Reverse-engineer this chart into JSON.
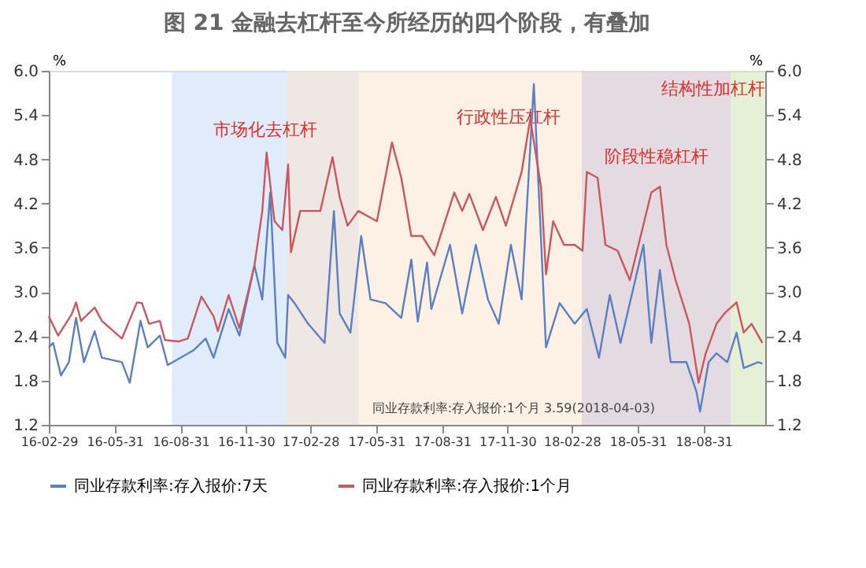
{
  "chart_data": {
    "type": "line",
    "title": "图 21 金融去杠杆至今所经历的四个阶段，有叠加",
    "ylabel": "%",
    "y2label": "%",
    "xlim": [
      "2016-02-29",
      "2018-11-25"
    ],
    "xticks": [
      {
        "value": "2016-02-29",
        "label": "16-02-29"
      },
      {
        "value": "2016-05-31",
        "label": "16-05-31"
      },
      {
        "value": "2016-08-31",
        "label": "16-08-31"
      },
      {
        "value": "2016-11-30",
        "label": "16-11-30"
      },
      {
        "value": "2017-02-28",
        "label": "17-02-28"
      },
      {
        "value": "2017-05-31",
        "label": "17-05-31"
      },
      {
        "value": "2017-08-31",
        "label": "17-08-31"
      },
      {
        "value": "2017-11-30",
        "label": "17-11-30"
      },
      {
        "value": "2018-02-28",
        "label": "18-02-28"
      },
      {
        "value": "2018-05-31",
        "label": "18-05-31"
      },
      {
        "value": "2018-08-31",
        "label": "18-08-31"
      }
    ],
    "ylim": [
      1.2,
      6.0
    ],
    "yticks": [
      1.2,
      1.8,
      2.4,
      {
        "value": 3,
        "label": "3.0"
      },
      3.6,
      4.2,
      4.8,
      5.4,
      {
        "value": 6,
        "label": "6.0"
      }
    ],
    "y2lim": [
      1.2,
      6.0
    ],
    "y2ticks": [
      1.2,
      1.8,
      2.4,
      {
        "value": 3,
        "label": "3.0"
      },
      3.6,
      4.2,
      4.8,
      5.4,
      {
        "value": 6,
        "label": "6.0"
      }
    ],
    "grid": false,
    "legend": "bottom",
    "marker": "none",
    "line_style": "solid",
    "series": [
      {
        "name": "同业存款利率:存入报价:7天",
        "color": "#5b7fbf",
        "x": [
          "2016-02-29",
          "2016-03-06",
          "2016-03-17",
          "2016-03-28",
          "2016-04-03",
          "2016-04-07",
          "2016-04-18",
          "2016-05-03",
          "2016-05-13",
          "2016-06-10",
          "2016-06-21",
          "2016-07-06",
          "2016-07-16",
          "2016-08-02",
          "2016-08-13",
          "2016-09-18",
          "2016-10-05",
          "2016-10-16",
          "2016-11-06",
          "2016-11-21",
          "2016-12-12",
          "2016-12-23",
          "2017-01-03",
          "2017-01-13",
          "2017-01-24",
          "2017-01-28",
          "2017-02-06",
          "2017-02-25",
          "2017-03-20",
          "2017-04-02",
          "2017-04-10",
          "2017-04-25",
          "2017-05-10",
          "2017-05-23",
          "2017-06-13",
          "2017-07-05",
          "2017-07-19",
          "2017-07-28",
          "2017-08-10",
          "2017-08-16",
          "2017-09-11",
          "2017-09-28",
          "2017-10-17",
          "2017-11-03",
          "2017-11-18",
          "2017-12-05",
          "2017-12-20",
          "2018-01-06",
          "2018-01-23",
          "2018-02-11",
          "2018-03-04",
          "2018-03-21",
          "2018-04-07",
          "2018-04-22",
          "2018-05-07",
          "2018-06-08",
          "2018-06-19",
          "2018-07-01",
          "2018-07-16",
          "2018-08-07",
          "2018-08-21",
          "2018-08-26",
          "2018-09-07",
          "2018-09-18",
          "2018-10-03",
          "2018-10-16",
          "2018-10-26",
          "2018-11-15",
          "2018-11-21"
        ],
        "values": [
          2.25,
          2.31,
          1.87,
          2.05,
          2.41,
          2.65,
          2.05,
          2.47,
          2.11,
          2.05,
          1.77,
          2.61,
          2.25,
          2.41,
          2.01,
          2.21,
          2.37,
          2.11,
          2.77,
          2.41,
          3.36,
          2.9,
          4.35,
          2.31,
          2.11,
          2.96,
          2.85,
          2.57,
          2.31,
          4.1,
          2.71,
          2.45,
          3.76,
          2.9,
          2.85,
          2.65,
          3.44,
          2.6,
          3.4,
          2.77,
          3.64,
          2.71,
          3.64,
          2.9,
          2.57,
          3.64,
          2.9,
          5.82,
          2.25,
          2.85,
          2.57,
          2.77,
          2.11,
          2.96,
          2.31,
          3.64,
          2.31,
          3.3,
          2.05,
          2.05,
          1.65,
          1.38,
          2.05,
          2.17,
          2.05,
          2.45,
          1.97,
          2.05,
          2.03
        ]
      },
      {
        "name": "同业存款利率:存入报价:1个月",
        "color": "#c9575f",
        "axis": "y2",
        "x": [
          "2016-02-29",
          "2016-03-13",
          "2016-04-01",
          "2016-04-07",
          "2016-04-14",
          "2016-05-03",
          "2016-05-13",
          "2016-06-10",
          "2016-07-01",
          "2016-07-08",
          "2016-07-18",
          "2016-08-02",
          "2016-08-09",
          "2016-08-28",
          "2016-09-10",
          "2016-09-29",
          "2016-10-16",
          "2016-10-22",
          "2016-11-06",
          "2016-11-21",
          "2016-12-12",
          "2016-12-23",
          "2016-12-29",
          "2017-01-09",
          "2017-01-20",
          "2017-01-28",
          "2017-02-01",
          "2017-02-14",
          "2017-03-14",
          "2017-03-31",
          "2017-04-10",
          "2017-04-21",
          "2017-05-06",
          "2017-06-01",
          "2017-06-22",
          "2017-07-05",
          "2017-07-19",
          "2017-08-03",
          "2017-08-20",
          "2017-09-17",
          "2017-09-28",
          "2017-10-08",
          "2017-10-27",
          "2017-11-14",
          "2017-11-28",
          "2017-12-20",
          "2018-01-01",
          "2018-01-16",
          "2018-01-23",
          "2018-02-02",
          "2018-02-17",
          "2018-03-04",
          "2018-03-15",
          "2018-03-21",
          "2018-04-05",
          "2018-04-16",
          "2018-05-03",
          "2018-05-20",
          "2018-06-19",
          "2018-07-01",
          "2018-07-10",
          "2018-07-23",
          "2018-08-11",
          "2018-08-24",
          "2018-09-03",
          "2018-09-18",
          "2018-09-29",
          "2018-10-16",
          "2018-10-26",
          "2018-11-06",
          "2018-11-21"
        ],
        "values": [
          2.67,
          2.41,
          2.7,
          2.86,
          2.61,
          2.79,
          2.61,
          2.37,
          2.86,
          2.85,
          2.57,
          2.61,
          2.35,
          2.33,
          2.37,
          2.94,
          2.67,
          2.47,
          2.96,
          2.51,
          3.36,
          4.1,
          4.89,
          3.96,
          3.84,
          4.73,
          3.54,
          4.1,
          4.1,
          4.83,
          4.29,
          3.9,
          4.1,
          3.96,
          5.03,
          4.55,
          3.76,
          3.76,
          3.5,
          4.35,
          4.1,
          4.33,
          3.84,
          4.29,
          3.9,
          4.63,
          5.35,
          4.43,
          3.24,
          3.96,
          3.64,
          3.64,
          3.56,
          4.63,
          4.55,
          3.64,
          3.56,
          3.16,
          4.35,
          4.43,
          3.64,
          3.16,
          2.57,
          1.77,
          2.17,
          2.57,
          2.71,
          2.86,
          2.45,
          2.57,
          2.31
        ]
      }
    ],
    "bands": [
      {
        "axis": "x",
        "from": "2016-08-19",
        "to": "2017-05-06",
        "label": "市场化去杠杆",
        "color": "#c9dcf5"
      },
      {
        "axis": "x",
        "from": "2017-01-26",
        "to": "2018-10-08",
        "label": "行政性压杠杆",
        "color": "#fbe3cf"
      },
      {
        "axis": "x",
        "from": "2018-03-14",
        "to": "2018-10-08",
        "label": "阶段性稳杠杆",
        "color": "#cfc8e0"
      },
      {
        "axis": "x",
        "from": "2018-10-08",
        "to": "2018-11-25",
        "label": "结构性加杠杆",
        "color": "#cfe3b5"
      }
    ],
    "annotations": [
      "同业存款利率:存入报价:1个月 3.59(2018-04-03)"
    ]
  }
}
